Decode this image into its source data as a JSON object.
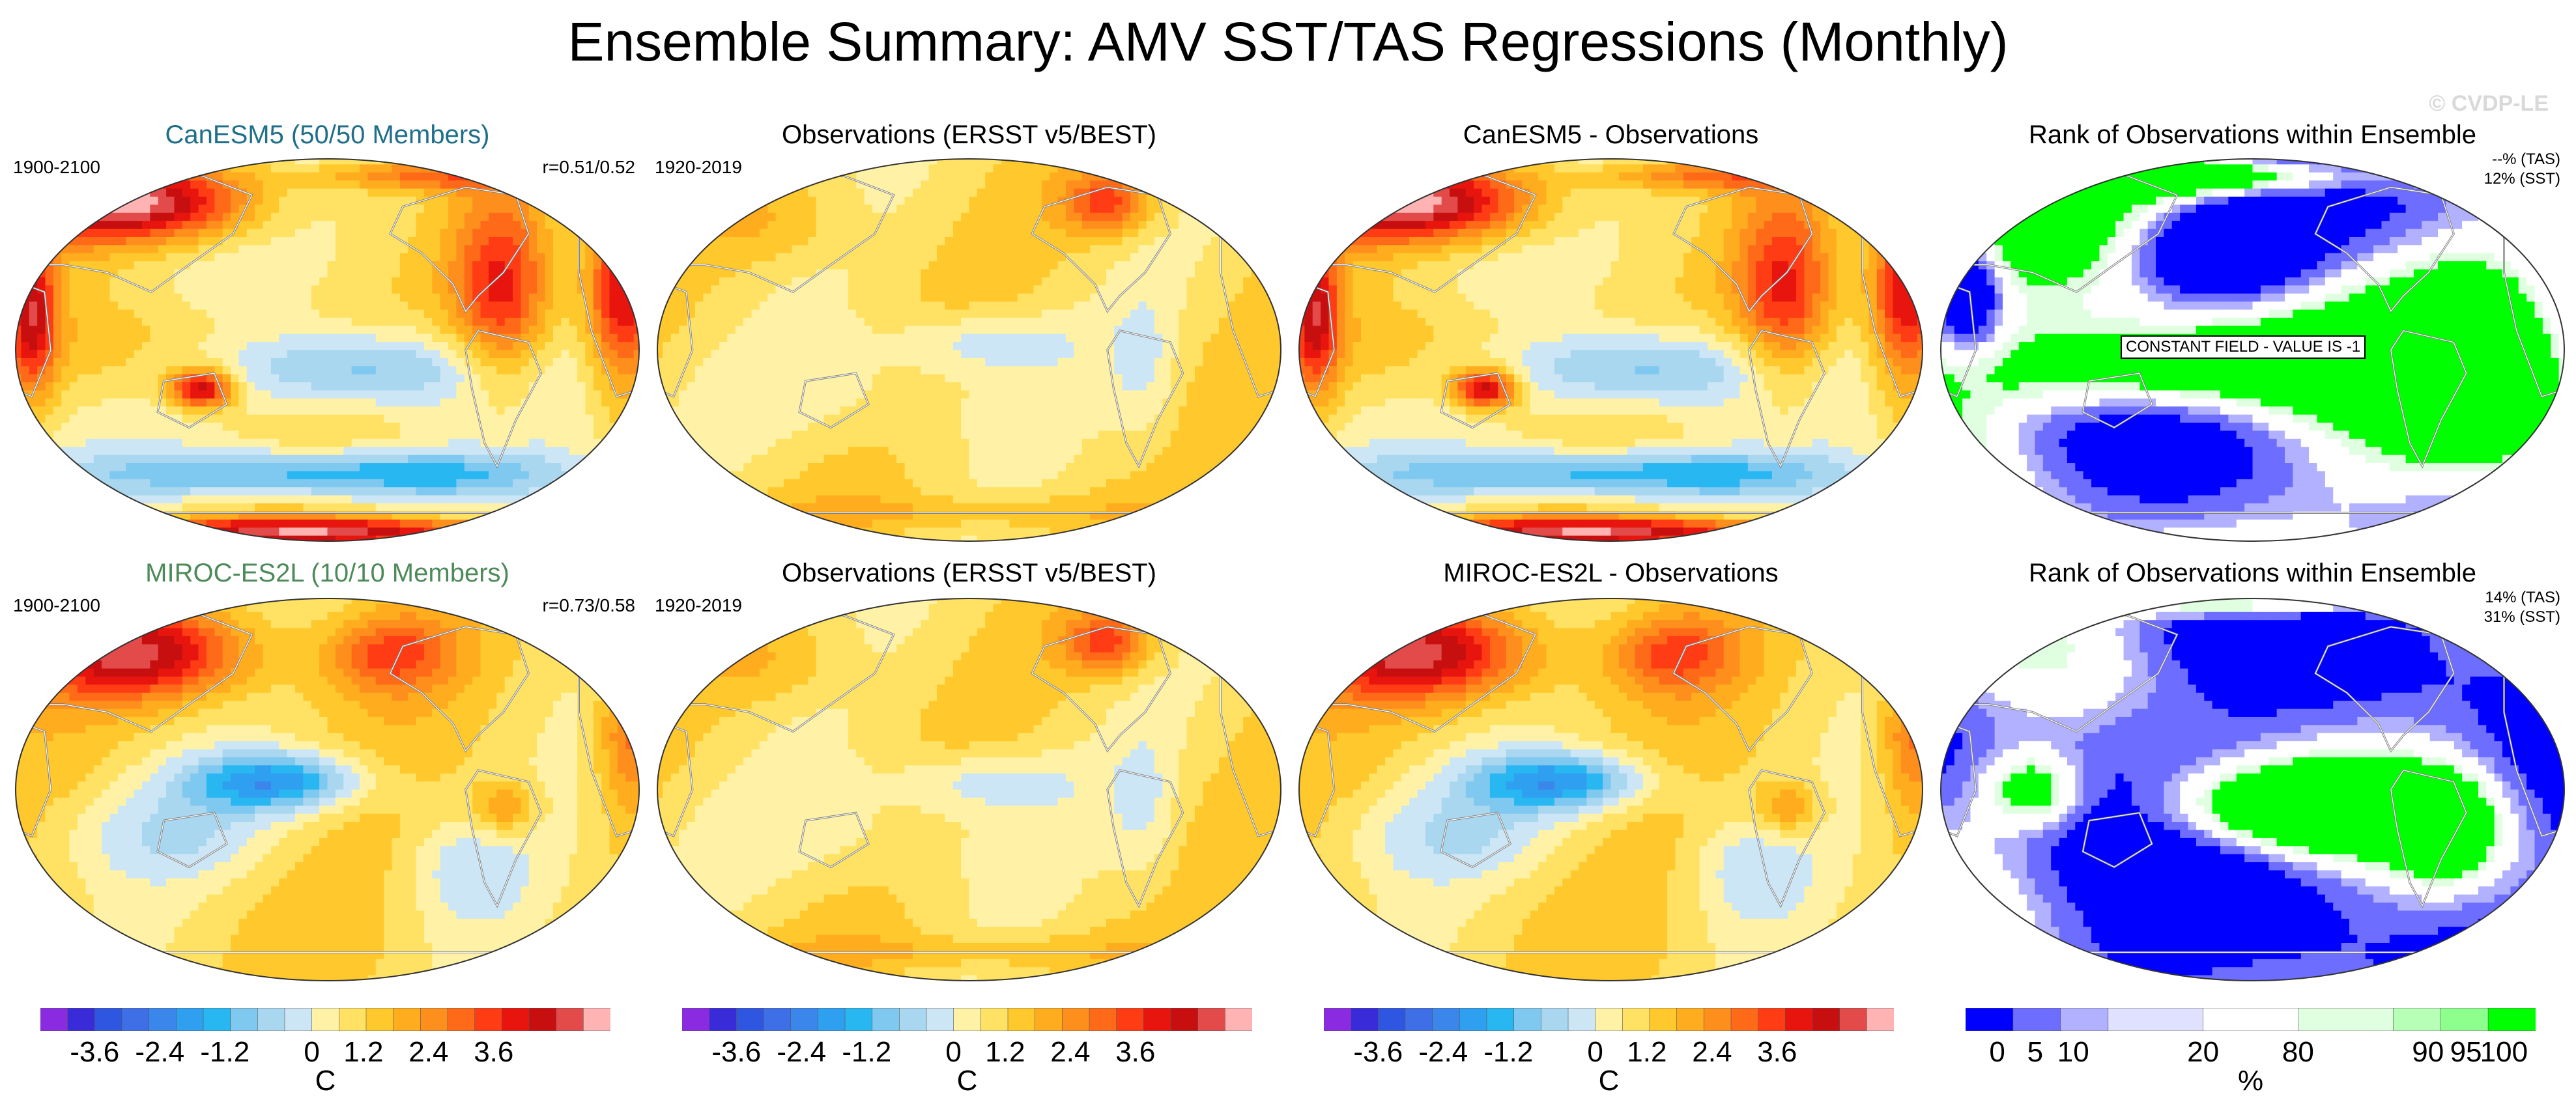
{
  "title": "Ensemble Summary: AMV SST/TAS Regressions (Monthly)",
  "watermark": "© CVDP-LE",
  "colors": {
    "model1_title": "#1f6f8b",
    "model2_title": "#4d8a5a",
    "diverging": [
      "#8a2be2",
      "#3a2bd8",
      "#2f56e0",
      "#3f6fe6",
      "#3a86ea",
      "#2f9ff0",
      "#29b7f2",
      "#7fc8ef",
      "#a9d7ef",
      "#cde6f5",
      "#fff2a6",
      "#ffe264",
      "#ffc82c",
      "#ffac1f",
      "#ff8f1c",
      "#ff6a18",
      "#ff3c14",
      "#e8150f",
      "#c80f0f",
      "#e34a4a",
      "#ffb3b3"
    ],
    "rank": [
      "#0000ff",
      "#6d6dff",
      "#b1b1ff",
      "#e0e0ff",
      "#ffffff",
      "#e0ffe0",
      "#b7ffb7",
      "#8cff8c",
      "#00ff00"
    ]
  },
  "panels": [
    {
      "title": "CanESM5 (50/50 Members)",
      "left": "1900-2100",
      "right": "r=0.51/0.52",
      "kind": "model",
      "pattern": "can"
    },
    {
      "title": "Observations (ERSST v5/BEST)",
      "left": "1920-2019",
      "right": "",
      "kind": "obs",
      "pattern": "obs"
    },
    {
      "title": "CanESM5 - Observations",
      "left": "",
      "right": "",
      "kind": "diff",
      "pattern": "can"
    },
    {
      "title": "Rank of Observations within Ensemble",
      "left": "",
      "right": "--% (TAS)",
      "right2": "12% (SST)",
      "kind": "rank",
      "pattern": "rank1",
      "overlay": "CONSTANT FIELD - VALUE IS -1"
    },
    {
      "title": "MIROC-ES2L (10/10 Members)",
      "left": "1900-2100",
      "right": "r=0.73/0.58",
      "kind": "model",
      "pattern": "miroc"
    },
    {
      "title": "Observations (ERSST v5/BEST)",
      "left": "1920-2019",
      "right": "",
      "kind": "obs",
      "pattern": "obs"
    },
    {
      "title": "MIROC-ES2L - Observations",
      "left": "",
      "right": "",
      "kind": "diff",
      "pattern": "miroc"
    },
    {
      "title": "Rank of Observations within Ensemble",
      "left": "",
      "right": "14% (TAS)",
      "right2": "31% (SST)",
      "kind": "rank",
      "pattern": "rank2",
      "overlay": ""
    }
  ],
  "colorbars": [
    {
      "ticks": [
        "-3.6",
        "-2.4",
        "-1.2",
        "0",
        "1.2",
        "2.4",
        "3.6"
      ],
      "label": "C"
    },
    {
      "ticks": [
        "-3.6",
        "-2.4",
        "-1.2",
        "0",
        "1.2",
        "2.4",
        "3.6"
      ],
      "label": "C"
    },
    {
      "ticks": [
        "-3.6",
        "-2.4",
        "-1.2",
        "0",
        "1.2",
        "2.4",
        "3.6"
      ],
      "label": "C"
    },
    {
      "ticks": [
        "0",
        "5",
        "10",
        "20",
        "80",
        "90",
        "95",
        "100"
      ],
      "label": "%"
    }
  ],
  "chart_data": {
    "type": "heatmap",
    "title": "Ensemble Summary: AMV SST/TAS Regressions (Monthly)",
    "units": "C",
    "color_scale": [
      -4.0,
      4.0
    ],
    "colorbar_ticks": [
      -3.6,
      -2.4,
      -1.2,
      0,
      1.2,
      2.4,
      3.6
    ],
    "rank_colorbar_ticks": [
      0,
      5,
      10,
      20,
      80,
      90,
      95,
      100
    ],
    "rank_units": "%",
    "panels": [
      {
        "name": "CanESM5 (50/50 Members)",
        "period": "1900-2100",
        "pattern_correlation": "0.51/0.52"
      },
      {
        "name": "Observations (ERSST v5/BEST)",
        "period": "1920-2019"
      },
      {
        "name": "CanESM5 - Observations"
      },
      {
        "name": "Rank of Observations within Ensemble",
        "TAS": "--%",
        "SST": "12%",
        "note": "CONSTANT FIELD - VALUE IS -1"
      },
      {
        "name": "MIROC-ES2L (10/10 Members)",
        "period": "1900-2100",
        "pattern_correlation": "0.73/0.58"
      },
      {
        "name": "Observations (ERSST v5/BEST)",
        "period": "1920-2019"
      },
      {
        "name": "MIROC-ES2L - Observations"
      },
      {
        "name": "Rank of Observations within Ensemble",
        "TAS": "14%",
        "SST": "31%"
      }
    ]
  }
}
